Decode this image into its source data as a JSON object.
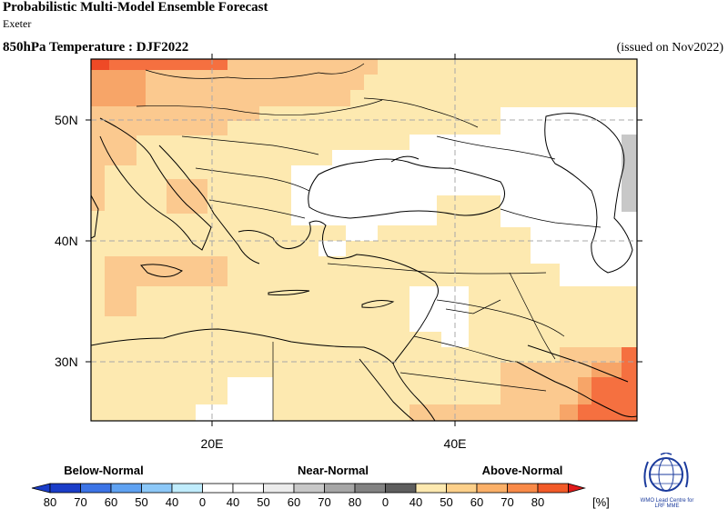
{
  "header": {
    "title": "Probabilistic Multi-Model Ensemble Forecast",
    "subtitle": "Exeter",
    "variable": "850hPa Temperature : DJF2022",
    "issued": "(issued on Nov2022)"
  },
  "axes": {
    "lat_labels": [
      "50N",
      "40N",
      "30N"
    ],
    "lon_labels": [
      "20E",
      "40E"
    ]
  },
  "legend": {
    "categories": [
      "Below-Normal",
      "Near-Normal",
      "Above-Normal"
    ],
    "tick_labels": [
      "80",
      "70",
      "60",
      "50",
      "40",
      "0",
      "40",
      "50",
      "60",
      "70",
      "80",
      "0",
      "40",
      "50",
      "60",
      "70",
      "80"
    ],
    "unit": "[%]",
    "colors": {
      "below": [
        "#1a3dc8",
        "#3c74e6",
        "#5fa2f2",
        "#8cc8f8",
        "#c0ecfc"
      ],
      "near": [
        "#ececec",
        "#c8c8c8",
        "#a6a6a6",
        "#828282",
        "#5e5e5e"
      ],
      "above": [
        "#fde9b0",
        "#fdd08a",
        "#fbb068",
        "#f98a48",
        "#f25a28",
        "#e01a1a"
      ],
      "white": "#ffffff"
    }
  },
  "logo": {
    "text_line1": "WMO Lead Centre for",
    "text_line2": "LRF MME"
  }
}
